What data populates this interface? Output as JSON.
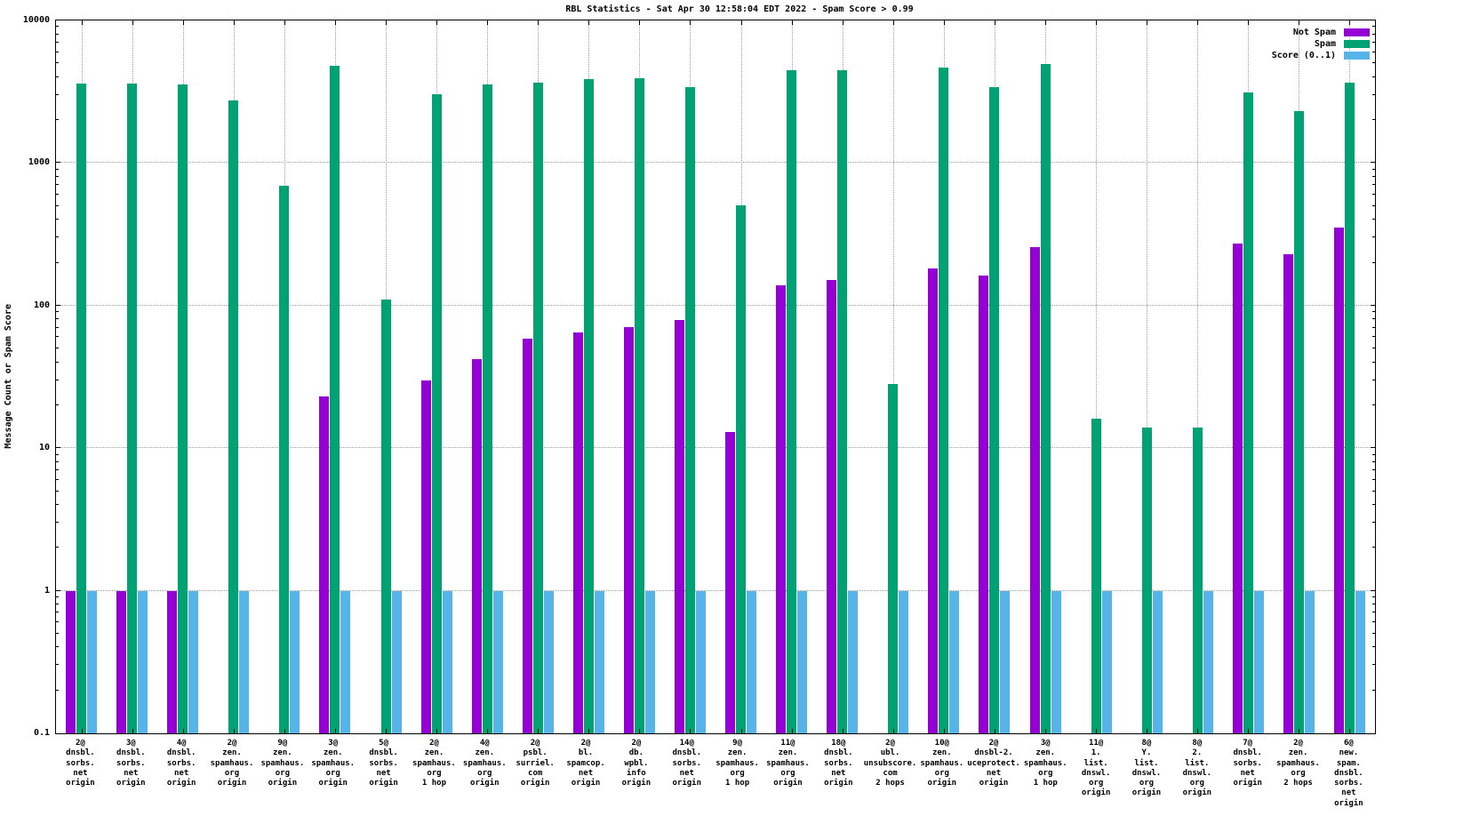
{
  "title": "RBL Statistics - Sat Apr 30 12:58:04 EDT 2022 - Spam Score > 0.99",
  "ylabel": "Message Count or Spam Score",
  "chart_data": {
    "type": "bar",
    "scale": "log-y",
    "grid": true,
    "legend_position": "top-right-inside",
    "ylim": [
      0.1,
      10000
    ],
    "y_ticks": [
      "0.1",
      "1",
      "10",
      "100",
      "1000",
      "10000"
    ],
    "categories": [
      [
        "2@",
        "dnsbl.",
        "sorbs.",
        "net",
        "origin"
      ],
      [
        "3@",
        "dnsbl.",
        "sorbs.",
        "net",
        "origin"
      ],
      [
        "4@",
        "dnsbl.",
        "sorbs.",
        "net",
        "origin"
      ],
      [
        "2@",
        "zen.",
        "spamhaus.",
        "org",
        "origin"
      ],
      [
        "9@",
        "zen.",
        "spamhaus.",
        "org",
        "origin"
      ],
      [
        "3@",
        "zen.",
        "spamhaus.",
        "org",
        "origin"
      ],
      [
        "5@",
        "dnsbl.",
        "sorbs.",
        "net",
        "origin"
      ],
      [
        "2@",
        "zen.",
        "spamhaus.",
        "org",
        "1 hop"
      ],
      [
        "4@",
        "zen.",
        "spamhaus.",
        "org",
        "origin"
      ],
      [
        "2@",
        "psbl.",
        "surriel.",
        "com",
        "origin"
      ],
      [
        "2@",
        "bl.",
        "spamcop.",
        "net",
        "origin"
      ],
      [
        "2@",
        "db.",
        "wpbl.",
        "info",
        "origin"
      ],
      [
        "14@",
        "dnsbl.",
        "sorbs.",
        "net",
        "origin"
      ],
      [
        "9@",
        "zen.",
        "spamhaus.",
        "org",
        "1 hop"
      ],
      [
        "11@",
        "zen.",
        "spamhaus.",
        "org",
        "origin"
      ],
      [
        "18@",
        "dnsbl.",
        "sorbs.",
        "net",
        "origin"
      ],
      [
        "2@",
        "ubl.",
        "unsubscore.",
        "com",
        "2 hops"
      ],
      [
        "10@",
        "zen.",
        "spamhaus.",
        "org",
        "origin"
      ],
      [
        "2@",
        "dnsbl-2.",
        "uceprotect.",
        "net",
        "origin"
      ],
      [
        "3@",
        "zen.",
        "spamhaus.",
        "org",
        "1 hop"
      ],
      [
        "11@",
        "1.",
        "list.",
        "dnswl.",
        "org",
        "origin"
      ],
      [
        "8@",
        "Y.",
        "list.",
        "dnswl.",
        "org",
        "origin"
      ],
      [
        "8@",
        "2.",
        "list.",
        "dnswl.",
        "org",
        "origin"
      ],
      [
        "7@",
        "dnsbl.",
        "sorbs.",
        "net",
        "origin"
      ],
      [
        "2@",
        "zen.",
        "spamhaus.",
        "org",
        "2 hops"
      ],
      [
        "6@",
        "new.",
        "spam.",
        "dnsbl.",
        "sorbs.",
        "net",
        "origin"
      ]
    ],
    "series": [
      {
        "name": "Not Spam",
        "color": "#9400d3",
        "values": [
          1,
          1,
          1,
          0,
          0,
          23,
          0,
          30,
          42,
          59,
          65,
          71,
          79,
          13,
          139,
          152,
          0,
          183,
          163,
          258,
          0,
          0,
          0,
          273,
          228,
          355
        ]
      },
      {
        "name": "Spam",
        "color": "#00a172",
        "values": [
          3620,
          3600,
          3560,
          2760,
          690,
          4820,
          110,
          3040,
          3550,
          3650,
          3870,
          3910,
          3420,
          505,
          4480,
          4450,
          28,
          4680,
          3420,
          4960,
          16,
          14,
          14,
          3120,
          2310,
          3680
        ]
      },
      {
        "name": "Score (0..1)",
        "color": "#56b4e9",
        "values": [
          1,
          1,
          1,
          1,
          1,
          1,
          1,
          1,
          1,
          1,
          1,
          1,
          1,
          1,
          1,
          1,
          1,
          1,
          1,
          1,
          1,
          1,
          1,
          1,
          1,
          1
        ]
      }
    ]
  }
}
